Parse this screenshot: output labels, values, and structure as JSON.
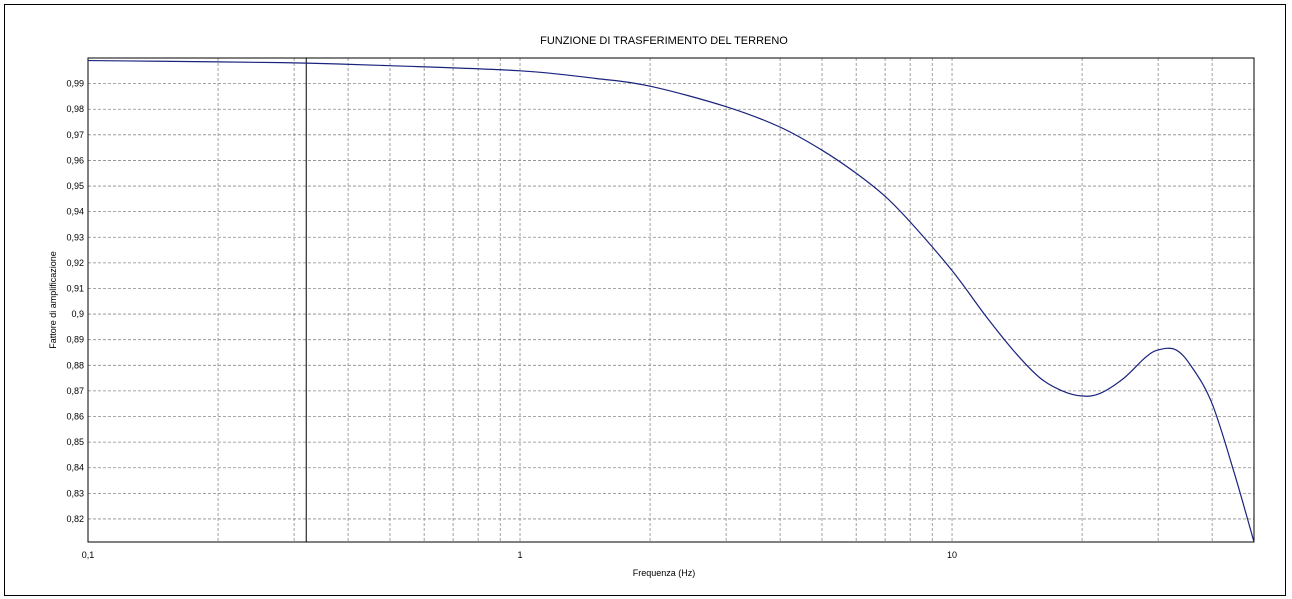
{
  "chart_data": {
    "type": "line",
    "title": "FUNZIONE DI TRASFERIMENTO DEL TERRENO",
    "xlabel": "Frequenza (Hz)",
    "ylabel": "Fattore di amplificazione",
    "xscale": "log",
    "xlim": [
      0.1,
      50
    ],
    "ylim": [
      0.811,
      1.0
    ],
    "grid": true,
    "x_tick_labels": [
      "0,1",
      "1",
      "10"
    ],
    "y_tick_labels": [
      "0,99",
      "0,98",
      "0,97",
      "0,96",
      "0,95",
      "0,94",
      "0,93",
      "0,92",
      "0,91",
      "0,9",
      "0,89",
      "0,88",
      "0,87",
      "0,86",
      "0,85",
      "0,84",
      "0,83",
      "0,82"
    ],
    "x_ticks": [
      0.1,
      1,
      10
    ],
    "y_ticks": [
      0.99,
      0.98,
      0.97,
      0.96,
      0.95,
      0.94,
      0.93,
      0.92,
      0.91,
      0.9,
      0.89,
      0.88,
      0.87,
      0.86,
      0.85,
      0.84,
      0.83,
      0.82
    ],
    "marker_line_x": 0.32,
    "series": [
      {
        "color": "#1a237e",
        "x": [
          0.1,
          0.2,
          0.32,
          0.5,
          1,
          1.5,
          2,
          3,
          4,
          5,
          6,
          7,
          8,
          10,
          12,
          14,
          16,
          18,
          20,
          22,
          25,
          28,
          30,
          33,
          36,
          40,
          45,
          50
        ],
        "y": [
          0.999,
          0.9985,
          0.998,
          0.997,
          0.995,
          0.992,
          0.989,
          0.981,
          0.973,
          0.964,
          0.955,
          0.946,
          0.936,
          0.917,
          0.899,
          0.885,
          0.875,
          0.87,
          0.868,
          0.869,
          0.875,
          0.883,
          0.886,
          0.886,
          0.879,
          0.865,
          0.838,
          0.811
        ]
      }
    ]
  }
}
